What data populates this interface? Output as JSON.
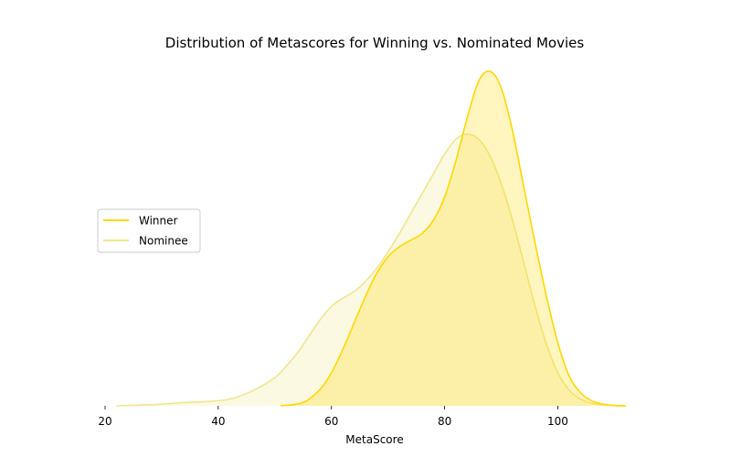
{
  "chart_data": {
    "type": "area",
    "title": "Distribution of Metascores for Winning vs. Nominated Movies",
    "xlabel": "MetaScore",
    "ylabel": "",
    "xlim": [
      20,
      113
    ],
    "x_ticks": [
      20,
      40,
      60,
      80,
      100
    ],
    "y_axis_visible": false,
    "grid": false,
    "legend_position": "center-left",
    "series": [
      {
        "name": "Winner",
        "color": "#FFD700",
        "fill_opacity": 0.25,
        "x": [
          51,
          55,
          58,
          60,
          62,
          64,
          66,
          68,
          70,
          72,
          74,
          76,
          78,
          80,
          82,
          84,
          86,
          88,
          90,
          92,
          94,
          96,
          98,
          100,
          102,
          104,
          106,
          108,
          110,
          112
        ],
        "y": [
          0.0,
          0.001,
          0.005,
          0.01,
          0.017,
          0.025,
          0.033,
          0.04,
          0.045,
          0.048,
          0.05,
          0.052,
          0.056,
          0.063,
          0.074,
          0.087,
          0.098,
          0.101,
          0.096,
          0.083,
          0.066,
          0.049,
          0.033,
          0.019,
          0.009,
          0.004,
          0.0015,
          0.0005,
          0.0001,
          0.0
        ]
      },
      {
        "name": "Nominee",
        "color": "#F0E68C",
        "fill_opacity": 0.25,
        "x": [
          22,
          26,
          30,
          34,
          38,
          42,
          46,
          50,
          52,
          54,
          56,
          58,
          60,
          62,
          64,
          66,
          68,
          70,
          72,
          74,
          76,
          78,
          80,
          82,
          84,
          86,
          88,
          90,
          92,
          94,
          96,
          98,
          100,
          102,
          104,
          106,
          108,
          110,
          112
        ],
        "y": [
          0.0,
          0.0002,
          0.0005,
          0.001,
          0.0013,
          0.002,
          0.0045,
          0.0085,
          0.012,
          0.016,
          0.021,
          0.026,
          0.03,
          0.0325,
          0.0345,
          0.0375,
          0.0415,
          0.0465,
          0.052,
          0.058,
          0.064,
          0.07,
          0.076,
          0.0805,
          0.082,
          0.0805,
          0.0755,
          0.067,
          0.056,
          0.043,
          0.03,
          0.0185,
          0.01,
          0.0048,
          0.002,
          0.0008,
          0.0003,
          0.0001,
          0.0
        ]
      }
    ]
  }
}
